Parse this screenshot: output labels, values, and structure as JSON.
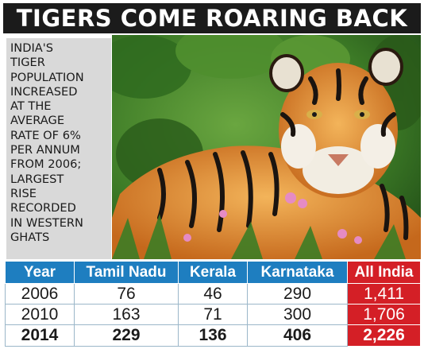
{
  "headline": "TIGERS COME ROARING BACK",
  "blurb": [
    "INDIA'S",
    "TIGER",
    "POPULATION",
    "INCREASED",
    "AT THE",
    "AVERAGE",
    "RATE OF 6%",
    "PER ANNUM",
    "FROM 2006;",
    "LARGEST",
    "RISE",
    "RECORDED",
    "IN WESTERN",
    "GHATS"
  ],
  "photo": {
    "subject": "tiger"
  },
  "table": {
    "headers": [
      "Year",
      "Tamil Nadu",
      "Kerala",
      "Karnataka",
      "All India"
    ],
    "rows": [
      [
        "2006",
        "76",
        "46",
        "290",
        "1,411"
      ],
      [
        "2010",
        "163",
        "71",
        "300",
        "1,706"
      ],
      [
        "2014",
        "229",
        "136",
        "406",
        "2,226"
      ]
    ]
  },
  "colors": {
    "header_blue": "#1e7ec0",
    "highlight_red": "#d41f26",
    "headline_bg": "#1b1b1b"
  }
}
